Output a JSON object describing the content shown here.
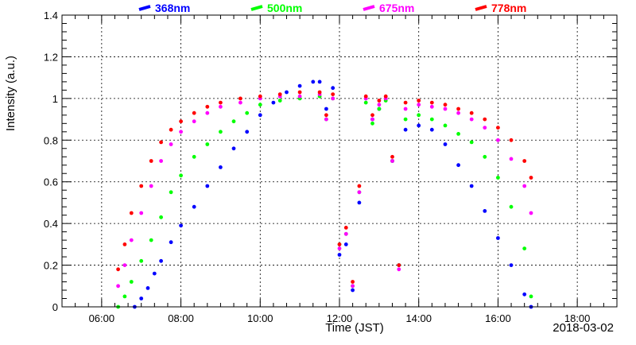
{
  "chart_data": {
    "type": "scatter",
    "xlabel": "Time (JST)",
    "ylabel": "Intensity (a.u.)",
    "date_label": "2018-03-02",
    "xlim": [
      "05:00",
      "19:00"
    ],
    "ylim": [
      0,
      1.4
    ],
    "x_ticks": [
      "06:00",
      "08:00",
      "10:00",
      "12:00",
      "14:00",
      "16:00",
      "18:00"
    ],
    "y_ticks": [
      "0",
      "0.2",
      "0.4",
      "0.6",
      "0.8",
      "1",
      "1.2",
      "1.4"
    ],
    "grid": true,
    "legend_position": "top",
    "series": [
      {
        "name": "368nm",
        "color": "#0000ff",
        "points": [
          {
            "x": "06:50",
            "y": 0.0
          },
          {
            "x": "07:00",
            "y": 0.04
          },
          {
            "x": "07:10",
            "y": 0.09
          },
          {
            "x": "07:20",
            "y": 0.16
          },
          {
            "x": "07:30",
            "y": 0.22
          },
          {
            "x": "07:45",
            "y": 0.31
          },
          {
            "x": "08:00",
            "y": 0.39
          },
          {
            "x": "08:20",
            "y": 0.48
          },
          {
            "x": "08:40",
            "y": 0.58
          },
          {
            "x": "09:00",
            "y": 0.67
          },
          {
            "x": "09:20",
            "y": 0.76
          },
          {
            "x": "09:40",
            "y": 0.84
          },
          {
            "x": "10:00",
            "y": 0.92
          },
          {
            "x": "10:20",
            "y": 0.98
          },
          {
            "x": "10:40",
            "y": 1.03
          },
          {
            "x": "11:00",
            "y": 1.06
          },
          {
            "x": "11:20",
            "y": 1.08
          },
          {
            "x": "11:30",
            "y": 1.08
          },
          {
            "x": "11:40",
            "y": 0.95
          },
          {
            "x": "11:50",
            "y": 1.05
          },
          {
            "x": "12:00",
            "y": 0.25
          },
          {
            "x": "12:10",
            "y": 0.3
          },
          {
            "x": "12:20",
            "y": 0.08
          },
          {
            "x": "12:30",
            "y": 0.5
          },
          {
            "x": "12:40",
            "y": 1.0
          },
          {
            "x": "12:50",
            "y": 0.9
          },
          {
            "x": "13:00",
            "y": 0.95
          },
          {
            "x": "13:10",
            "y": 1.0
          },
          {
            "x": "13:20",
            "y": 0.7
          },
          {
            "x": "13:30",
            "y": 0.2
          },
          {
            "x": "13:40",
            "y": 0.85
          },
          {
            "x": "14:00",
            "y": 0.87
          },
          {
            "x": "14:20",
            "y": 0.85
          },
          {
            "x": "14:40",
            "y": 0.78
          },
          {
            "x": "15:00",
            "y": 0.68
          },
          {
            "x": "15:20",
            "y": 0.58
          },
          {
            "x": "15:40",
            "y": 0.46
          },
          {
            "x": "16:00",
            "y": 0.33
          },
          {
            "x": "16:20",
            "y": 0.2
          },
          {
            "x": "16:40",
            "y": 0.06
          },
          {
            "x": "16:50",
            "y": 0.0
          }
        ]
      },
      {
        "name": "500nm",
        "color": "#00ff00",
        "points": [
          {
            "x": "06:25",
            "y": 0.0
          },
          {
            "x": "06:35",
            "y": 0.05
          },
          {
            "x": "06:45",
            "y": 0.12
          },
          {
            "x": "07:00",
            "y": 0.22
          },
          {
            "x": "07:15",
            "y": 0.32
          },
          {
            "x": "07:30",
            "y": 0.43
          },
          {
            "x": "07:45",
            "y": 0.55
          },
          {
            "x": "08:00",
            "y": 0.63
          },
          {
            "x": "08:20",
            "y": 0.72
          },
          {
            "x": "08:40",
            "y": 0.78
          },
          {
            "x": "09:00",
            "y": 0.84
          },
          {
            "x": "09:20",
            "y": 0.89
          },
          {
            "x": "09:40",
            "y": 0.93
          },
          {
            "x": "10:00",
            "y": 0.97
          },
          {
            "x": "10:30",
            "y": 0.99
          },
          {
            "x": "11:00",
            "y": 1.0
          },
          {
            "x": "11:30",
            "y": 1.01
          },
          {
            "x": "11:40",
            "y": 0.9
          },
          {
            "x": "11:50",
            "y": 1.0
          },
          {
            "x": "12:00",
            "y": 0.3
          },
          {
            "x": "12:10",
            "y": 0.35
          },
          {
            "x": "12:20",
            "y": 0.1
          },
          {
            "x": "12:30",
            "y": 0.55
          },
          {
            "x": "12:40",
            "y": 0.98
          },
          {
            "x": "12:50",
            "y": 0.88
          },
          {
            "x": "13:00",
            "y": 0.95
          },
          {
            "x": "13:10",
            "y": 0.99
          },
          {
            "x": "13:20",
            "y": 0.7
          },
          {
            "x": "13:30",
            "y": 0.2
          },
          {
            "x": "13:40",
            "y": 0.9
          },
          {
            "x": "14:00",
            "y": 0.92
          },
          {
            "x": "14:20",
            "y": 0.9
          },
          {
            "x": "14:40",
            "y": 0.87
          },
          {
            "x": "15:00",
            "y": 0.83
          },
          {
            "x": "15:20",
            "y": 0.79
          },
          {
            "x": "15:40",
            "y": 0.72
          },
          {
            "x": "16:00",
            "y": 0.62
          },
          {
            "x": "16:20",
            "y": 0.48
          },
          {
            "x": "16:40",
            "y": 0.28
          },
          {
            "x": "16:50",
            "y": 0.05
          }
        ]
      },
      {
        "name": "675nm",
        "color": "#ff00ff",
        "points": [
          {
            "x": "06:25",
            "y": 0.1
          },
          {
            "x": "06:35",
            "y": 0.2
          },
          {
            "x": "06:45",
            "y": 0.32
          },
          {
            "x": "07:00",
            "y": 0.45
          },
          {
            "x": "07:15",
            "y": 0.58
          },
          {
            "x": "07:30",
            "y": 0.7
          },
          {
            "x": "07:45",
            "y": 0.78
          },
          {
            "x": "08:00",
            "y": 0.84
          },
          {
            "x": "08:20",
            "y": 0.89
          },
          {
            "x": "08:40",
            "y": 0.93
          },
          {
            "x": "09:00",
            "y": 0.96
          },
          {
            "x": "09:30",
            "y": 0.98
          },
          {
            "x": "10:00",
            "y": 1.0
          },
          {
            "x": "10:30",
            "y": 1.01
          },
          {
            "x": "11:00",
            "y": 1.01
          },
          {
            "x": "11:30",
            "y": 1.02
          },
          {
            "x": "11:40",
            "y": 0.9
          },
          {
            "x": "11:50",
            "y": 1.0
          },
          {
            "x": "12:00",
            "y": 0.28
          },
          {
            "x": "12:10",
            "y": 0.35
          },
          {
            "x": "12:20",
            "y": 0.1
          },
          {
            "x": "12:30",
            "y": 0.55
          },
          {
            "x": "12:40",
            "y": 1.0
          },
          {
            "x": "12:50",
            "y": 0.9
          },
          {
            "x": "13:00",
            "y": 0.97
          },
          {
            "x": "13:10",
            "y": 1.0
          },
          {
            "x": "13:20",
            "y": 0.7
          },
          {
            "x": "13:30",
            "y": 0.18
          },
          {
            "x": "13:40",
            "y": 0.95
          },
          {
            "x": "14:00",
            "y": 0.97
          },
          {
            "x": "14:20",
            "y": 0.96
          },
          {
            "x": "14:40",
            "y": 0.95
          },
          {
            "x": "15:00",
            "y": 0.93
          },
          {
            "x": "15:20",
            "y": 0.9
          },
          {
            "x": "15:40",
            "y": 0.86
          },
          {
            "x": "16:00",
            "y": 0.8
          },
          {
            "x": "16:20",
            "y": 0.71
          },
          {
            "x": "16:40",
            "y": 0.58
          },
          {
            "x": "16:50",
            "y": 0.45
          }
        ]
      },
      {
        "name": "778nm",
        "color": "#ff0000",
        "points": [
          {
            "x": "06:25",
            "y": 0.18
          },
          {
            "x": "06:35",
            "y": 0.3
          },
          {
            "x": "06:45",
            "y": 0.45
          },
          {
            "x": "07:00",
            "y": 0.58
          },
          {
            "x": "07:15",
            "y": 0.7
          },
          {
            "x": "07:30",
            "y": 0.79
          },
          {
            "x": "07:45",
            "y": 0.85
          },
          {
            "x": "08:00",
            "y": 0.89
          },
          {
            "x": "08:20",
            "y": 0.93
          },
          {
            "x": "08:40",
            "y": 0.96
          },
          {
            "x": "09:00",
            "y": 0.98
          },
          {
            "x": "09:30",
            "y": 1.0
          },
          {
            "x": "10:00",
            "y": 1.01
          },
          {
            "x": "10:30",
            "y": 1.02
          },
          {
            "x": "11:00",
            "y": 1.03
          },
          {
            "x": "11:30",
            "y": 1.03
          },
          {
            "x": "11:40",
            "y": 0.92
          },
          {
            "x": "11:50",
            "y": 1.02
          },
          {
            "x": "12:00",
            "y": 0.3
          },
          {
            "x": "12:10",
            "y": 0.38
          },
          {
            "x": "12:20",
            "y": 0.12
          },
          {
            "x": "12:30",
            "y": 0.58
          },
          {
            "x": "12:40",
            "y": 1.01
          },
          {
            "x": "12:50",
            "y": 0.92
          },
          {
            "x": "13:00",
            "y": 0.99
          },
          {
            "x": "13:10",
            "y": 1.01
          },
          {
            "x": "13:20",
            "y": 0.72
          },
          {
            "x": "13:30",
            "y": 0.2
          },
          {
            "x": "13:40",
            "y": 0.98
          },
          {
            "x": "14:00",
            "y": 0.99
          },
          {
            "x": "14:20",
            "y": 0.98
          },
          {
            "x": "14:40",
            "y": 0.97
          },
          {
            "x": "15:00",
            "y": 0.95
          },
          {
            "x": "15:20",
            "y": 0.93
          },
          {
            "x": "15:40",
            "y": 0.9
          },
          {
            "x": "16:00",
            "y": 0.86
          },
          {
            "x": "16:20",
            "y": 0.8
          },
          {
            "x": "16:40",
            "y": 0.7
          },
          {
            "x": "16:50",
            "y": 0.62
          }
        ]
      }
    ]
  }
}
